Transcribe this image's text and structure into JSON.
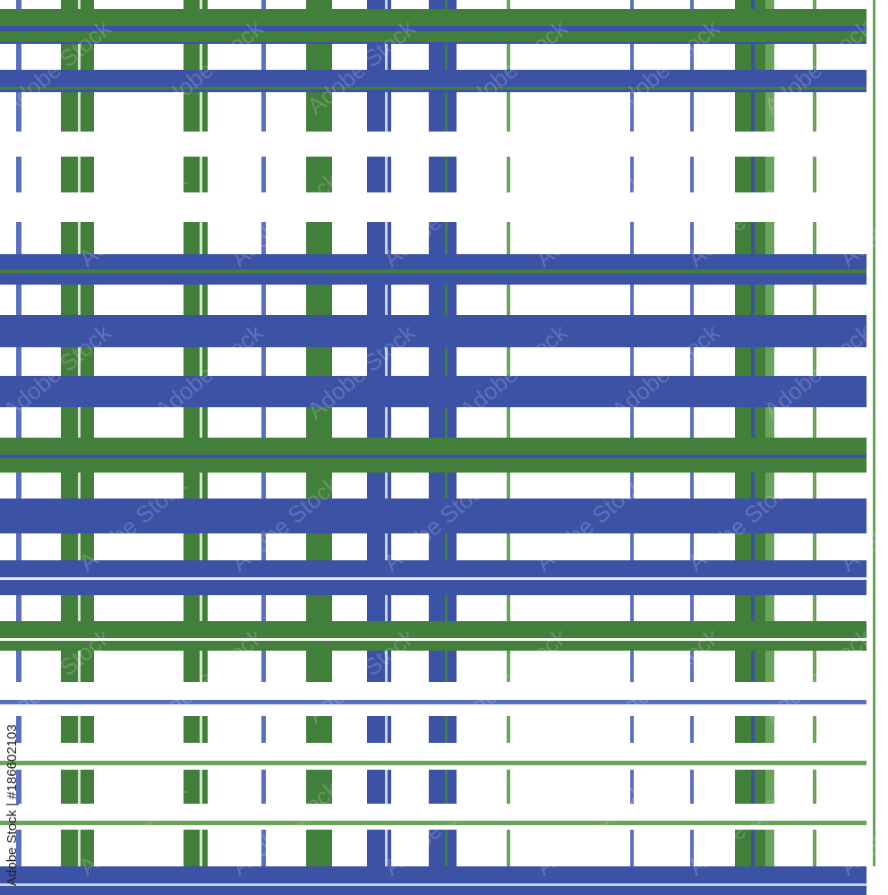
{
  "watermark": {
    "text": "Adobe Stock",
    "id_label": "Adobe Stock | #186602103"
  },
  "colors": {
    "blue": "#3b52a5",
    "blue_light": "#5a6fbf",
    "green": "#427f3a",
    "green_light": "#6aa35a",
    "pale": "#d6e4d0",
    "background": "#ffffff"
  }
}
